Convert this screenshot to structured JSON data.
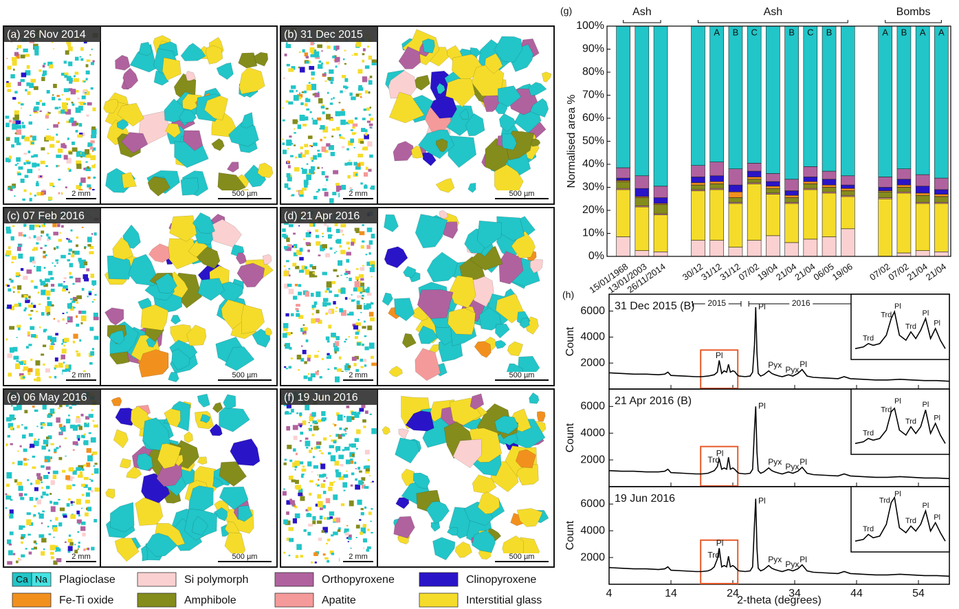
{
  "panels": [
    {
      "label": "(a) 26 Nov 2014",
      "scale_left": "2 mm",
      "scale_right": "500 µm"
    },
    {
      "label": "(b) 31 Dec 2015",
      "scale_left": "2 mm",
      "scale_right": "500 µm"
    },
    {
      "label": "(c) 07 Feb 2016",
      "scale_left": "2 mm",
      "scale_right": "500 µm"
    },
    {
      "label": "(d) 21 Apr 2016",
      "scale_left": "2 mm",
      "scale_right": "500 µm"
    },
    {
      "label": "(e) 06 May 2016",
      "scale_left": "2 mm",
      "scale_right": "500 µm"
    },
    {
      "label": "(f) 19 Jun 2016",
      "scale_left": "2 mm",
      "scale_right": "500 µm"
    }
  ],
  "chart_data": [
    {
      "type": "stacked_bar",
      "panel_label": "(g)",
      "y_label": "Normalised area %",
      "groups": [
        "Ash",
        "Ash",
        "Bombs"
      ],
      "years": [
        "2015",
        "2016",
        "2016"
      ],
      "categories": [
        "15/01/1968",
        "13/01/2003",
        "26/11/2014",
        null,
        "30/12",
        "31/12",
        "31/12",
        "07/02",
        "19/04",
        "21/04",
        "21/04",
        "06/05",
        "19/06",
        null,
        "07/02",
        "07/02",
        "21/04",
        "21/04"
      ],
      "bar_labels": [
        null,
        null,
        null,
        null,
        null,
        "A",
        "B",
        "C",
        null,
        "B",
        "C",
        "B",
        null,
        null,
        "A",
        "B",
        "A",
        "A"
      ],
      "ylim": [
        0,
        100
      ],
      "yticks": [
        {
          "value": 0,
          "label": "0%"
        },
        {
          "value": 10,
          "label": "10%"
        },
        {
          "value": 20,
          "label": "20%"
        },
        {
          "value": 30,
          "label": "30%"
        },
        {
          "value": 40,
          "label": "40%"
        },
        {
          "value": 50,
          "label": "50%"
        },
        {
          "value": 60,
          "label": "60%"
        },
        {
          "value": 70,
          "label": "70%"
        },
        {
          "value": 80,
          "label": "80%"
        },
        {
          "value": 90,
          "label": "90%"
        },
        {
          "value": 100,
          "label": "100%"
        }
      ],
      "series": [
        {
          "name": "Si polymorph",
          "color": "#fbd0d0",
          "values": [
            8.5,
            2.5,
            2,
            null,
            7,
            7,
            4,
            7,
            9,
            6,
            7.5,
            8.5,
            12,
            null,
            0,
            1.5,
            2.5,
            2
          ]
        },
        {
          "name": "Interstitial glass",
          "color": "#f5dc2a",
          "values": [
            20.5,
            19,
            16,
            null,
            21.5,
            22,
            19,
            24.5,
            18,
            17,
            21.5,
            19,
            14,
            null,
            25,
            26,
            20.5,
            21
          ]
        },
        {
          "name": "Apatite",
          "color": "#f59a9a",
          "values": [
            0.5,
            0.5,
            0.5,
            null,
            0.5,
            0.5,
            0.5,
            0.5,
            0.5,
            0.5,
            0.5,
            0.5,
            0.5,
            null,
            0.5,
            0.5,
            0.5,
            0.5
          ]
        },
        {
          "name": "Amphibole",
          "color": "#848c1c",
          "values": [
            3,
            3.5,
            4,
            null,
            2,
            2,
            2,
            1.5,
            2,
            2,
            2,
            2,
            2,
            null,
            2.5,
            2,
            3,
            2.5
          ]
        },
        {
          "name": "Fe-Ti oxide",
          "color": "#f2901e",
          "values": [
            0.5,
            0.5,
            0.5,
            null,
            1,
            1,
            2.5,
            1,
            1,
            1,
            1,
            1,
            1,
            null,
            0.5,
            1,
            1,
            1
          ]
        },
        {
          "name": "Clinopyroxene",
          "color": "#2a14c8",
          "values": [
            1,
            3.5,
            2.5,
            null,
            2.5,
            2.5,
            3,
            2.5,
            2,
            2,
            2,
            2.5,
            1.5,
            null,
            1.5,
            2.5,
            3,
            2
          ]
        },
        {
          "name": "Orthopyroxene",
          "color": "#b0629e",
          "values": [
            4.5,
            5.5,
            5,
            null,
            5,
            6,
            7,
            3.5,
            3.5,
            5,
            4.5,
            3.5,
            4,
            null,
            4.5,
            4.5,
            5,
            5
          ]
        },
        {
          "name": "Plagioclase",
          "color": "#22c5c8",
          "swatch_labels": [
            "Ca",
            "Na"
          ],
          "swatch_colors": [
            "#22c5c8",
            "#45e3e3"
          ],
          "values": [
            61.5,
            65,
            69.5,
            null,
            60.5,
            59,
            62,
            59.5,
            64,
            66.5,
            61,
            63,
            65,
            null,
            65.5,
            62,
            64.5,
            66
          ]
        }
      ]
    },
    {
      "type": "line",
      "panel_label": "(h)",
      "title": "31 Dec 2015 (B)",
      "y_label": "Count",
      "color": "#000000",
      "xlim": [
        4,
        59
      ],
      "ylim": [
        0,
        7300
      ],
      "yticks": [
        2000,
        4000,
        6000
      ],
      "x": [
        4,
        6,
        8,
        10,
        12,
        13,
        13.5,
        14,
        16,
        18,
        19,
        20,
        20.5,
        21,
        21.5,
        21.8,
        22.2,
        22.6,
        23,
        23.3,
        23.6,
        24,
        24.3,
        24.7,
        25,
        26,
        26.8,
        27.2,
        27.5,
        27.7,
        27.9,
        28.1,
        28.5,
        29,
        29.8,
        30.3,
        30.8,
        31.5,
        32,
        33,
        33.7,
        34.5,
        35.2,
        36,
        37,
        39,
        41,
        42,
        43,
        45,
        47,
        49,
        51,
        53,
        55,
        57,
        59
      ],
      "values": [
        1250,
        1200,
        1150,
        1150,
        1100,
        1150,
        1300,
        1050,
        1000,
        950,
        950,
        1000,
        1050,
        1100,
        1300,
        2200,
        1200,
        1400,
        1300,
        1900,
        1300,
        1400,
        1350,
        1100,
        1000,
        950,
        1000,
        1300,
        3400,
        6300,
        2800,
        1200,
        1000,
        1100,
        1400,
        1200,
        1100,
        1000,
        950,
        1100,
        1000,
        1200,
        1500,
        1000,
        900,
        850,
        800,
        950,
        800,
        750,
        700,
        700,
        750,
        700,
        650,
        650,
        600
      ],
      "annotations": [
        {
          "text": "Pl",
          "x": 21.8,
          "y": 2550
        },
        {
          "text": "Pl",
          "x": 28.7,
          "y": 6300
        },
        {
          "text": "Pyx",
          "x": 30.8,
          "y": 1800
        },
        {
          "text": "Pyx",
          "x": 33.6,
          "y": 1450
        },
        {
          "text": "Pl",
          "x": 35.4,
          "y": 1850
        }
      ],
      "highlight": {
        "xlim": [
          18.8,
          24.8
        ],
        "ylim": [
          0,
          3000
        ],
        "color": "#e65a2a"
      },
      "inset": {
        "ylim": [
          800,
          2500
        ],
        "x": [
          19.5,
          20,
          20.3,
          20.6,
          21,
          21.4,
          21.7,
          21.9,
          22.2,
          22.6,
          22.9,
          23.2,
          23.5,
          23.8,
          24.1,
          24.4,
          24.7,
          25
        ],
        "values": [
          1000,
          1050,
          1150,
          1100,
          1150,
          1400,
          1900,
          2100,
          1400,
          1250,
          1500,
          1300,
          1550,
          1900,
          1300,
          1600,
          1250,
          1000
        ],
        "annotations": [
          {
            "text": "Trd",
            "x": 20.3,
            "y": 1300
          },
          {
            "text": "Trd",
            "x": 21.4,
            "y": 2000
          },
          {
            "text": "Pl",
            "x": 22.1,
            "y": 2250
          },
          {
            "text": "Trd",
            "x": 22.9,
            "y": 1650
          },
          {
            "text": "Pl",
            "x": 23.8,
            "y": 2050
          },
          {
            "text": "Pl",
            "x": 24.5,
            "y": 1750
          }
        ]
      }
    },
    {
      "type": "line",
      "title": "21 Apr 2016 (B)",
      "y_label": "Count",
      "color": "#000000",
      "xlim": [
        4,
        59
      ],
      "ylim": [
        0,
        7300
      ],
      "yticks": [
        2000,
        4000,
        6000
      ],
      "x": [
        4,
        6,
        8,
        10,
        12,
        13,
        13.5,
        14,
        16,
        18,
        19,
        20,
        20.5,
        21,
        21.5,
        21.8,
        22.2,
        22.6,
        23,
        23.3,
        23.6,
        24,
        24.3,
        24.7,
        25,
        26,
        26.8,
        27.2,
        27.5,
        27.7,
        27.9,
        28.1,
        28.5,
        29,
        29.8,
        30.3,
        30.8,
        31.5,
        32,
        33,
        33.7,
        34.5,
        35.2,
        36,
        37,
        39,
        41,
        42,
        43,
        45,
        47,
        49,
        51,
        53,
        55,
        57,
        59
      ],
      "values": [
        1200,
        1150,
        1150,
        1100,
        1100,
        1150,
        1300,
        1050,
        1000,
        950,
        950,
        1000,
        1100,
        1200,
        1500,
        2100,
        1300,
        1400,
        1300,
        2200,
        1300,
        1400,
        1300,
        1100,
        1000,
        950,
        1000,
        1300,
        4300,
        6000,
        2600,
        1200,
        1000,
        1100,
        1400,
        1200,
        1100,
        1000,
        950,
        1100,
        1000,
        1150,
        1450,
        1000,
        900,
        850,
        800,
        950,
        800,
        750,
        700,
        700,
        750,
        700,
        650,
        650,
        600
      ],
      "annotations": [
        {
          "text": "Trd",
          "x": 20.9,
          "y": 1950
        },
        {
          "text": "Pl",
          "x": 21.9,
          "y": 2450
        },
        {
          "text": "Pl",
          "x": 28.7,
          "y": 6000
        },
        {
          "text": "Pyx",
          "x": 30.8,
          "y": 1800
        },
        {
          "text": "Pyx",
          "x": 33.6,
          "y": 1450
        },
        {
          "text": "Pl",
          "x": 35.4,
          "y": 1800
        }
      ],
      "highlight": {
        "xlim": [
          18.8,
          24.8
        ],
        "ylim": [
          0,
          3000
        ],
        "color": "#e65a2a"
      },
      "inset": {
        "ylim": [
          800,
          2500
        ],
        "x": [
          19.5,
          20,
          20.3,
          20.6,
          21,
          21.4,
          21.7,
          21.9,
          22.2,
          22.6,
          22.9,
          23.2,
          23.5,
          23.8,
          24.1,
          24.4,
          24.7,
          25
        ],
        "values": [
          1000,
          1050,
          1150,
          1100,
          1150,
          1400,
          1950,
          2050,
          1400,
          1250,
          1500,
          1300,
          1500,
          2000,
          1300,
          1600,
          1250,
          1000
        ],
        "annotations": [
          {
            "text": "Trd",
            "x": 20.3,
            "y": 1300
          },
          {
            "text": "Trd",
            "x": 21.4,
            "y": 2000
          },
          {
            "text": "Pl",
            "x": 22.1,
            "y": 2250
          },
          {
            "text": "Trd",
            "x": 22.9,
            "y": 1650
          },
          {
            "text": "Pl",
            "x": 23.8,
            "y": 2150
          },
          {
            "text": "Pl",
            "x": 24.5,
            "y": 1750
          }
        ]
      }
    },
    {
      "type": "line",
      "title": "19 Jun 2016",
      "y_label": "Count",
      "x_label": "2-theta (degrees)",
      "color": "#000000",
      "xlim": [
        4,
        59
      ],
      "ylim": [
        0,
        7300
      ],
      "yticks": [
        2000,
        4000,
        6000
      ],
      "xticks": [
        4,
        14,
        24,
        34,
        44,
        54
      ],
      "x": [
        4,
        6,
        8,
        10,
        12,
        13,
        13.5,
        14,
        16,
        18,
        19,
        20,
        20.5,
        21,
        21.5,
        21.8,
        22.2,
        22.6,
        23,
        23.3,
        23.6,
        24,
        24.3,
        24.7,
        25,
        26,
        26.8,
        27.2,
        27.5,
        27.7,
        27.9,
        28.1,
        28.5,
        29,
        29.8,
        30.3,
        30.8,
        31.5,
        32,
        33,
        33.7,
        34.5,
        35.2,
        36,
        37,
        39,
        41,
        42,
        43,
        45,
        47,
        49,
        51,
        53,
        55,
        57,
        59
      ],
      "values": [
        1250,
        1200,
        1150,
        1150,
        1100,
        1150,
        1300,
        1050,
        1000,
        950,
        950,
        1000,
        1100,
        1300,
        1900,
        2700,
        1300,
        1400,
        1300,
        2100,
        1300,
        1400,
        1300,
        1100,
        1000,
        950,
        1000,
        1300,
        4500,
        6400,
        2700,
        1200,
        1000,
        1100,
        1400,
        1200,
        1100,
        1000,
        950,
        1100,
        1000,
        1150,
        1450,
        1000,
        900,
        850,
        800,
        950,
        800,
        750,
        700,
        700,
        750,
        700,
        650,
        650,
        600
      ],
      "annotations": [
        {
          "text": "Trd",
          "x": 20.9,
          "y": 2150
        },
        {
          "text": "Pl",
          "x": 21.9,
          "y": 3050
        },
        {
          "text": "Pl",
          "x": 28.7,
          "y": 6200
        },
        {
          "text": "Pyx",
          "x": 30.8,
          "y": 1800
        },
        {
          "text": "Pyx",
          "x": 33.6,
          "y": 1450
        },
        {
          "text": "Pl",
          "x": 35.4,
          "y": 1800
        }
      ],
      "highlight": {
        "xlim": [
          18.8,
          24.8
        ],
        "ylim": [
          0,
          3300
        ],
        "color": "#e65a2a"
      },
      "inset": {
        "ylim": [
          800,
          2500
        ],
        "x": [
          19.5,
          20,
          20.3,
          20.6,
          21,
          21.4,
          21.7,
          21.9,
          22.2,
          22.6,
          22.9,
          23.2,
          23.5,
          23.8,
          24.1,
          24.4,
          24.7,
          25
        ],
        "values": [
          1000,
          1050,
          1200,
          1100,
          1150,
          1500,
          2150,
          2300,
          1400,
          1250,
          1450,
          1300,
          1500,
          1900,
          1300,
          1550,
          1250,
          1000
        ],
        "annotations": [
          {
            "text": "Trd",
            "x": 20.3,
            "y": 1350
          },
          {
            "text": "Trd",
            "x": 21.3,
            "y": 2200
          },
          {
            "text": "Pl",
            "x": 22.1,
            "y": 2400
          },
          {
            "text": "Trd",
            "x": 22.9,
            "y": 1600
          },
          {
            "text": "Pl",
            "x": 23.8,
            "y": 2050
          },
          {
            "text": "Pl",
            "x": 24.5,
            "y": 1700
          }
        ]
      }
    }
  ]
}
